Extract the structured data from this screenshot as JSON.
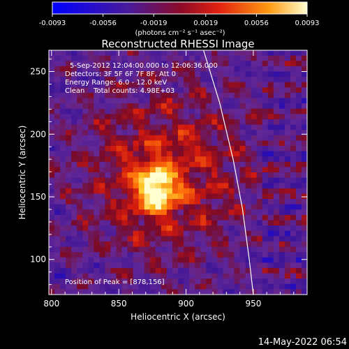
{
  "chart_data": {
    "type": "heatmap",
    "title": "Reconstructed RHESSI Image",
    "xlabel": "Heliocentric X (arcsec)",
    "ylabel": "Heliocentric Y (arcsec)",
    "xlim": [
      798,
      990
    ],
    "ylim": [
      72,
      267
    ],
    "x_ticks": [
      800,
      850,
      900,
      950
    ],
    "y_ticks": [
      100,
      150,
      200,
      250
    ],
    "colorbar": {
      "range": [
        -0.0093,
        0.0093
      ],
      "ticks": [
        -0.0093,
        -0.0056,
        -0.0019,
        0.0019,
        0.0056,
        0.0093
      ],
      "tick_labels": [
        "-0.0093",
        "-0.0056",
        "-0.0019",
        "0.0019",
        "0.0056",
        "0.0093"
      ],
      "unit_label": "(photons cm⁻² s⁻¹ asec⁻²)",
      "colors": [
        "#0000ff",
        "#5a1aa0",
        "#cc1010",
        "#ff9010",
        "#ffffc8"
      ]
    },
    "peak": {
      "x": 878,
      "y": 156,
      "value": 0.0093
    },
    "annotations": [
      "5-Sep-2012 12:04:00.000 to 12:06:36.000",
      "Detectors: 3F 5F 6F 7F 8F, Att 0",
      "Energy Range: 6.0 - 12.0 keV",
      "Clean    Total counts: 4.98E+03",
      "Position of Peak = [878,156]"
    ],
    "limb_curve": [
      [
        913,
        267
      ],
      [
        925,
        225
      ],
      [
        935,
        180
      ],
      [
        942,
        140
      ],
      [
        947,
        100
      ],
      [
        950,
        72
      ]
    ]
  },
  "footer_timestamp": "14-May-2022 06:54"
}
